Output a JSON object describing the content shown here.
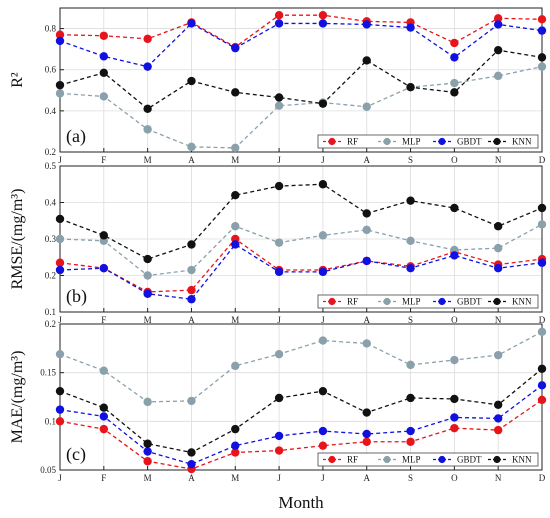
{
  "chart_data": {
    "type": "line",
    "categories": [
      "J",
      "F",
      "M",
      "A",
      "M",
      "J",
      "J",
      "A",
      "S",
      "O",
      "N",
      "D"
    ],
    "xlabel": "Month",
    "grid": true,
    "legend_placement": "bottom-right",
    "panels": [
      {
        "panel_label": "(a)",
        "ylabel": "R²",
        "ylim": [
          0.2,
          0.9
        ],
        "yticks": [
          0.2,
          0.4,
          0.6,
          0.8
        ],
        "series": [
          {
            "name": "RF",
            "color": "#e8141c",
            "values": [
              0.77,
              0.765,
              0.75,
              0.83,
              0.71,
              0.865,
              0.865,
              0.835,
              0.83,
              0.73,
              0.85,
              0.845
            ]
          },
          {
            "name": "MLP",
            "color": "#8aa1ac",
            "values": [
              0.485,
              0.47,
              0.31,
              0.225,
              0.22,
              0.425,
              0.44,
              0.42,
              0.515,
              0.535,
              0.57,
              0.615
            ]
          },
          {
            "name": "GBDT",
            "color": "#1010e0",
            "values": [
              0.74,
              0.665,
              0.615,
              0.825,
              0.705,
              0.825,
              0.825,
              0.82,
              0.805,
              0.66,
              0.82,
              0.79
            ]
          },
          {
            "name": "KNN",
            "color": "#111111",
            "values": [
              0.525,
              0.585,
              0.41,
              0.545,
              0.49,
              0.465,
              0.435,
              0.645,
              0.515,
              0.49,
              0.695,
              0.66
            ]
          }
        ]
      },
      {
        "panel_label": "(b)",
        "ylabel": "RMSE/(mg/m³)",
        "ylim": [
          0.1,
          0.5
        ],
        "yticks": [
          0.1,
          0.2,
          0.3,
          0.4,
          0.5
        ],
        "series": [
          {
            "name": "RF",
            "color": "#e8141c",
            "values": [
              0.235,
              0.22,
              0.155,
              0.16,
              0.3,
              0.215,
              0.215,
              0.24,
              0.225,
              0.265,
              0.23,
              0.245
            ]
          },
          {
            "name": "MLP",
            "color": "#8aa1ac",
            "values": [
              0.3,
              0.295,
              0.2,
              0.215,
              0.335,
              0.29,
              0.31,
              0.325,
              0.295,
              0.27,
              0.275,
              0.34
            ]
          },
          {
            "name": "GBDT",
            "color": "#1010e0",
            "values": [
              0.215,
              0.22,
              0.15,
              0.135,
              0.285,
              0.21,
              0.21,
              0.24,
              0.22,
              0.255,
              0.22,
              0.235
            ]
          },
          {
            "name": "KNN",
            "color": "#111111",
            "values": [
              0.355,
              0.31,
              0.245,
              0.285,
              0.42,
              0.445,
              0.45,
              0.37,
              0.405,
              0.385,
              0.335,
              0.385
            ]
          }
        ]
      },
      {
        "panel_label": "(c)",
        "ylabel": "MAE/(mg/m³)",
        "ylim": [
          0.05,
          0.2
        ],
        "yticks": [
          0.05,
          0.1,
          0.15,
          0.2
        ],
        "series": [
          {
            "name": "RF",
            "color": "#e8141c",
            "values": [
              0.1,
              0.092,
              0.059,
              0.051,
              0.068,
              0.07,
              0.075,
              0.079,
              0.079,
              0.093,
              0.091,
              0.122
            ]
          },
          {
            "name": "MLP",
            "color": "#8aa1ac",
            "values": [
              0.169,
              0.152,
              0.12,
              0.121,
              0.157,
              0.169,
              0.183,
              0.18,
              0.158,
              0.163,
              0.168,
              0.192
            ]
          },
          {
            "name": "GBDT",
            "color": "#1010e0",
            "values": [
              0.112,
              0.105,
              0.069,
              0.056,
              0.075,
              0.085,
              0.09,
              0.087,
              0.09,
              0.104,
              0.103,
              0.137
            ]
          },
          {
            "name": "KNN",
            "color": "#111111",
            "values": [
              0.131,
              0.114,
              0.077,
              0.068,
              0.092,
              0.124,
              0.131,
              0.109,
              0.124,
              0.123,
              0.117,
              0.154
            ]
          }
        ]
      }
    ]
  }
}
